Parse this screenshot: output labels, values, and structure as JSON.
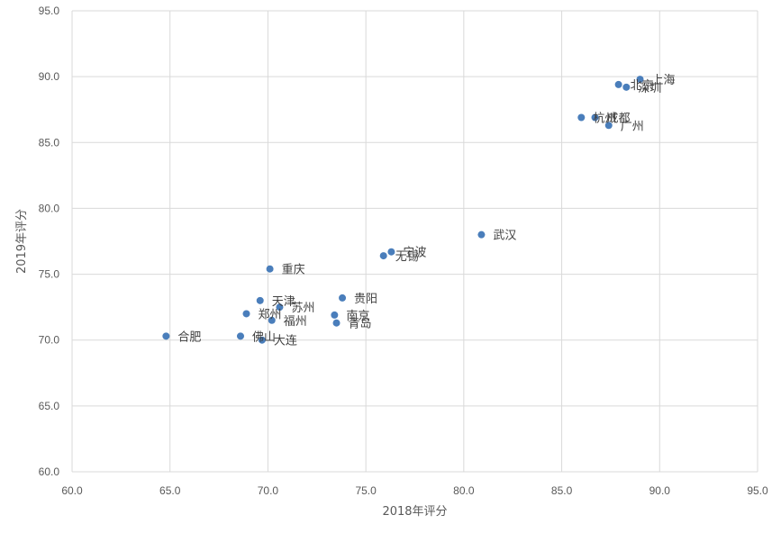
{
  "chart_data": {
    "type": "scatter",
    "title": "",
    "xlabel": "2018年评分",
    "ylabel": "2019年评分",
    "xlim": [
      60,
      95
    ],
    "ylim": [
      60,
      95
    ],
    "x_ticks": [
      "60.0",
      "65.0",
      "70.0",
      "75.0",
      "80.0",
      "85.0",
      "90.0",
      "95.0"
    ],
    "y_ticks": [
      "60.0",
      "65.0",
      "70.0",
      "75.0",
      "80.0",
      "85.0",
      "90.0",
      "95.0"
    ],
    "grid": true,
    "marker_color": "#4a7ebb",
    "points": [
      {
        "label": "上海",
        "x": 89.0,
        "y": 89.8
      },
      {
        "label": "北京",
        "x": 87.9,
        "y": 89.4
      },
      {
        "label": "深圳",
        "x": 88.3,
        "y": 89.2
      },
      {
        "label": "成都",
        "x": 86.7,
        "y": 86.9
      },
      {
        "label": "杭州",
        "x": 86.0,
        "y": 86.9
      },
      {
        "label": "广州",
        "x": 87.4,
        "y": 86.3
      },
      {
        "label": "武汉",
        "x": 80.9,
        "y": 78.0
      },
      {
        "label": "宁波",
        "x": 76.3,
        "y": 76.7
      },
      {
        "label": "无锡",
        "x": 75.9,
        "y": 76.4
      },
      {
        "label": "重庆",
        "x": 70.1,
        "y": 75.4
      },
      {
        "label": "贵阳",
        "x": 73.8,
        "y": 73.2
      },
      {
        "label": "天津",
        "x": 69.6,
        "y": 73.0
      },
      {
        "label": "苏州",
        "x": 70.6,
        "y": 72.5
      },
      {
        "label": "郑州",
        "x": 68.9,
        "y": 72.0
      },
      {
        "label": "南京",
        "x": 73.4,
        "y": 71.9
      },
      {
        "label": "福州",
        "x": 70.2,
        "y": 71.5
      },
      {
        "label": "青岛",
        "x": 73.5,
        "y": 71.3
      },
      {
        "label": "合肥",
        "x": 64.8,
        "y": 70.3
      },
      {
        "label": "佛山",
        "x": 68.6,
        "y": 70.3
      },
      {
        "label": "大连",
        "x": 69.7,
        "y": 70.0
      }
    ]
  }
}
